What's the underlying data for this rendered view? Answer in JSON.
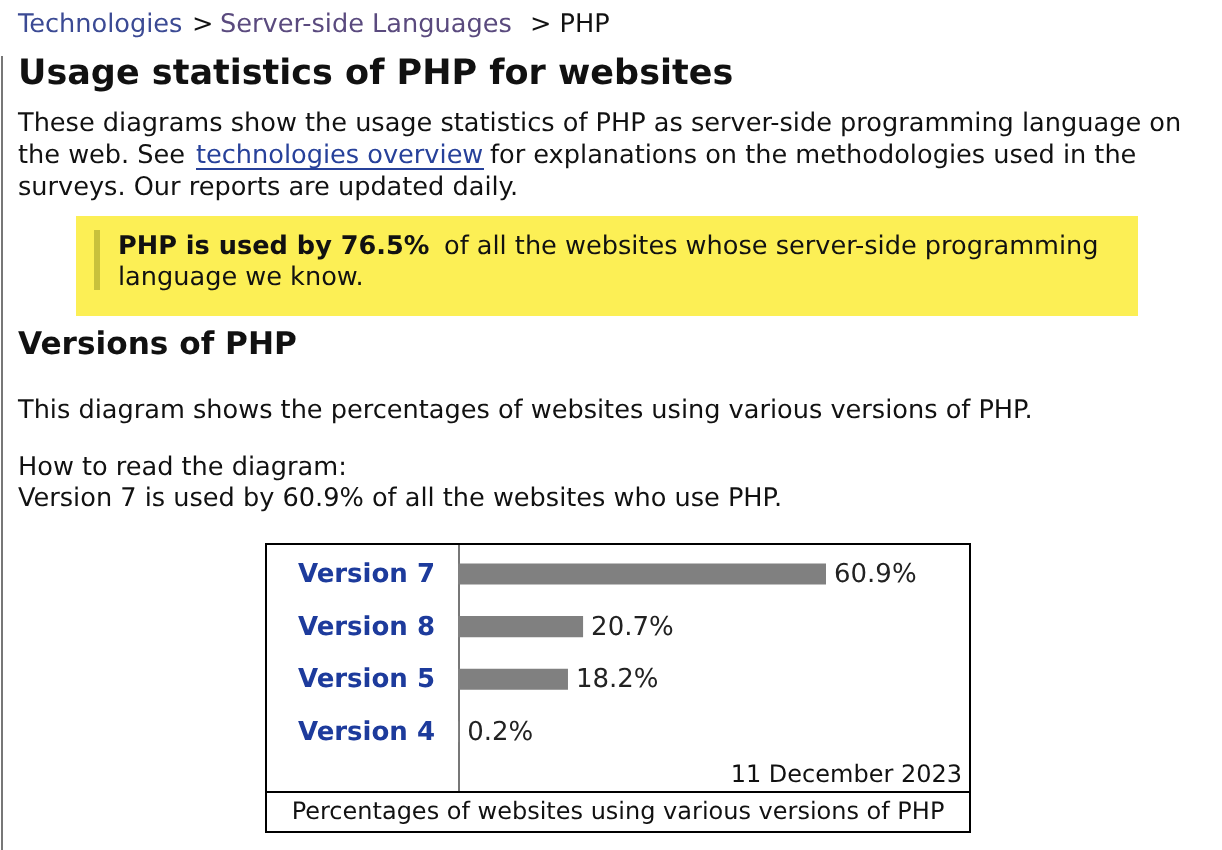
{
  "chart_data": {
    "type": "bar",
    "orientation": "horizontal",
    "title": "Versions of PHP",
    "subtitle": "This diagram shows the percentages of websites using various versions of PHP.",
    "categories": [
      "Version 7",
      "Version 8",
      "Version 5",
      "Version 4"
    ],
    "values": [
      60.9,
      20.7,
      18.2,
      0.2
    ],
    "color": "#808080",
    "value_labels": [
      "60.9%",
      "20.7%",
      "18.2%",
      "0.2%"
    ],
    "annotations": [
      "Technologies",
      ">",
      "Server-side Languages",
      "> PHP",
      "Usage statistics of PHP for websites",
      "These diagrams show the usage statistics of PHP as server-side programming language on\nthe web. See",
      "technologies overview",
      "for explanations on the methodologies used in the",
      "surveys. Our reports are updated daily.",
      "PHP is used by 76.5%",
      "of all the websites whose server-side programming",
      "language we know.",
      "How to read the diagram:\nVersion 7 is used by 60.9% of all the websites who use PHP.",
      "11 December 2023",
      "Percentages of websites using various versions of PHP"
    ]
  }
}
